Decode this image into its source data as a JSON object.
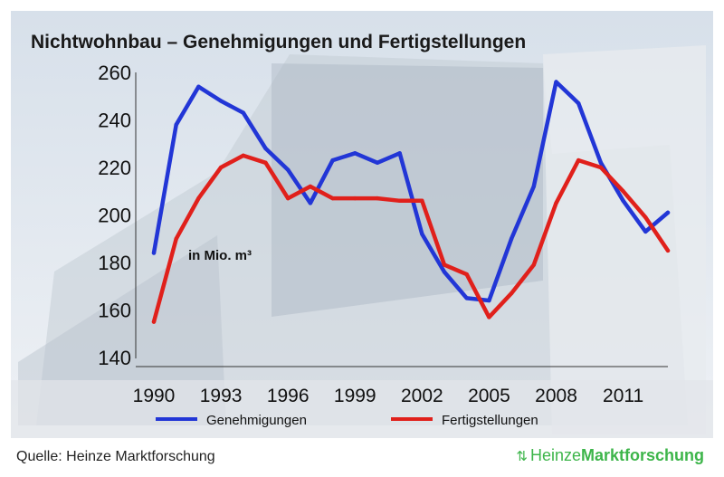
{
  "chart_data": {
    "type": "line",
    "title": "Nichtwohnbau – Genehmigungen und Fertigstellungen",
    "unit_label": "in Mio. m³",
    "xlabel": "",
    "ylabel": "",
    "x": [
      1990,
      1991,
      1992,
      1993,
      1994,
      1995,
      1996,
      1997,
      1998,
      1999,
      2000,
      2001,
      2002,
      2003,
      2004,
      2005,
      2006,
      2007,
      2008,
      2009,
      2010,
      2011,
      2012,
      2013
    ],
    "x_ticks": [
      "1990",
      "1993",
      "1996",
      "1999",
      "2002",
      "2005",
      "2008",
      "2011"
    ],
    "y_ticks": [
      "140",
      "160",
      "180",
      "200",
      "220",
      "240",
      "260"
    ],
    "ylim": [
      140,
      262
    ],
    "grid": false,
    "legend_position": "bottom",
    "series": [
      {
        "name": "Genehmigungen",
        "color": "#2236d6",
        "values": [
          184,
          238,
          254,
          248,
          243,
          228,
          219,
          205,
          223,
          226,
          222,
          226,
          192,
          176,
          165,
          164,
          190,
          212,
          256,
          247,
          222,
          206,
          193,
          201
        ]
      },
      {
        "name": "Fertigstellungen",
        "color": "#e0201b",
        "values": [
          155,
          190,
          207,
          220,
          225,
          222,
          207,
          212,
          207,
          207,
          207,
          206,
          206,
          179,
          175,
          157,
          167,
          179,
          205,
          223,
          220,
          210,
          199,
          185
        ]
      }
    ]
  },
  "footer": {
    "source": "Quelle: Heinze Marktforschung",
    "brand_icon": "recycle-arrows-icon",
    "brand_part1": "Heinze",
    "brand_part2": "Marktforschung",
    "brand_color": "#3db54a"
  }
}
